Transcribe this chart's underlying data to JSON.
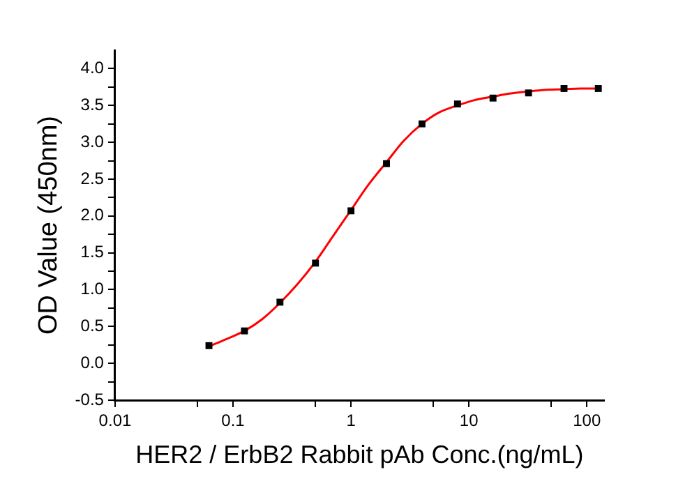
{
  "chart_data": {
    "type": "scatter",
    "xlabel": "HER2 / ErbB2 Rabbit pAb Conc.(ng/mL)",
    "ylabel": "OD Value (450nm)",
    "log": "x",
    "grid": false,
    "legend": false,
    "xlim": [
      0.01,
      140
    ],
    "xticks": [
      0.01,
      {
        "value": 0.05,
        "label": null
      },
      0.1,
      {
        "value": 0.5,
        "label": null
      },
      1,
      {
        "value": 5,
        "label": null
      },
      10,
      {
        "value": 50,
        "label": null
      },
      100
    ],
    "ylim": [
      -0.5,
      4.25
    ],
    "yticks": [
      -0.5,
      {
        "value": -0.25,
        "label": null
      },
      {
        "value": 0,
        "label": "0.0"
      },
      {
        "value": 0.25,
        "label": null
      },
      0.5,
      {
        "value": 0.75,
        "label": null
      },
      {
        "value": 1,
        "label": "1.0"
      },
      {
        "value": 1.25,
        "label": null
      },
      1.5,
      {
        "value": 1.75,
        "label": null
      },
      {
        "value": 2,
        "label": "2.0"
      },
      {
        "value": 2.25,
        "label": null
      },
      2.5,
      {
        "value": 2.75,
        "label": null
      },
      {
        "value": 3,
        "label": "3.0"
      },
      {
        "value": 3.25,
        "label": null
      },
      3.5,
      {
        "value": 3.75,
        "label": null
      },
      {
        "value": 4,
        "label": "4.0"
      }
    ],
    "series": [
      {
        "type": "scatter",
        "color": "#000000",
        "marker": "square",
        "x": [
          0.0625,
          0.125,
          0.25,
          0.5,
          1,
          2,
          4,
          8,
          16,
          32,
          64,
          125
        ],
        "values": [
          0.24,
          0.44,
          0.83,
          1.36,
          2.07,
          2.71,
          3.25,
          3.52,
          3.6,
          3.67,
          3.73,
          3.73
        ]
      },
      {
        "type": "line",
        "color": "#ff0000",
        "marker": "none",
        "x": [
          0.0625,
          0.088,
          0.125,
          0.177,
          0.25,
          0.35,
          0.5,
          0.7,
          1,
          1.4,
          2,
          2.8,
          4,
          5.5,
          8,
          11,
          16,
          22,
          32,
          44,
          64,
          88,
          125
        ],
        "values": [
          0.23,
          0.33,
          0.44,
          0.6,
          0.82,
          1.07,
          1.38,
          1.72,
          2.08,
          2.42,
          2.73,
          3.02,
          3.25,
          3.4,
          3.5,
          3.57,
          3.62,
          3.66,
          3.69,
          3.71,
          3.72,
          3.73,
          3.73
        ]
      }
    ]
  }
}
